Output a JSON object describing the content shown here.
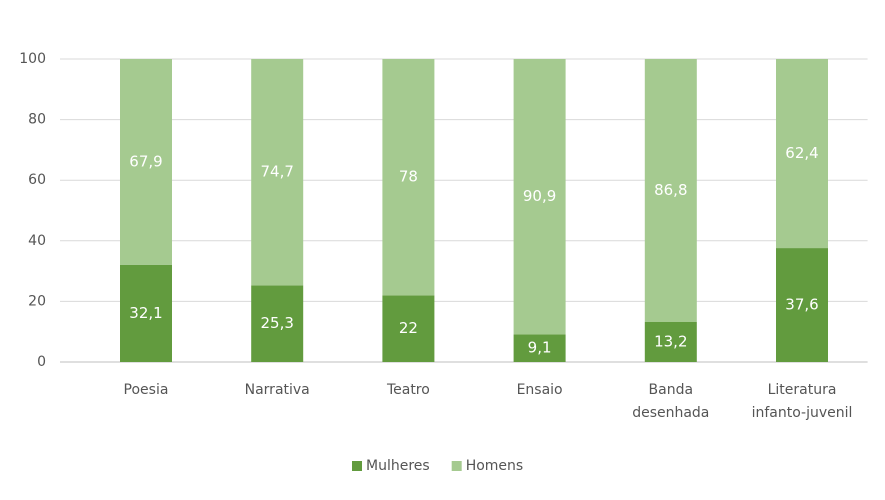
{
  "chart_data": {
    "type": "stacked_bar",
    "categories": [
      [
        "Poesia"
      ],
      [
        "Narrativa"
      ],
      [
        "Teatro"
      ],
      [
        "Ensaio"
      ],
      [
        "Banda",
        "desenhada"
      ],
      [
        "Literatura",
        "infanto-juvenil"
      ]
    ],
    "series": [
      {
        "name": "Mulheres",
        "color": "#629b3e",
        "values": [
          32.1,
          25.3,
          22,
          9.1,
          13.2,
          37.6
        ],
        "value_labels": [
          "32,1",
          "25,3",
          "22",
          "9,1",
          "13,2",
          "37,6"
        ]
      },
      {
        "name": "Homens",
        "color": "#a5ca90",
        "values": [
          67.9,
          74.7,
          78,
          90.9,
          86.8,
          62.4
        ],
        "value_labels": [
          "67,9",
          "74,7",
          "78",
          "90,9",
          "86,8",
          "62,4"
        ]
      }
    ],
    "ylim": [
      0,
      100
    ],
    "yticks": [
      0,
      20,
      40,
      60,
      80,
      100
    ],
    "grid": true,
    "legend": "bottom"
  }
}
